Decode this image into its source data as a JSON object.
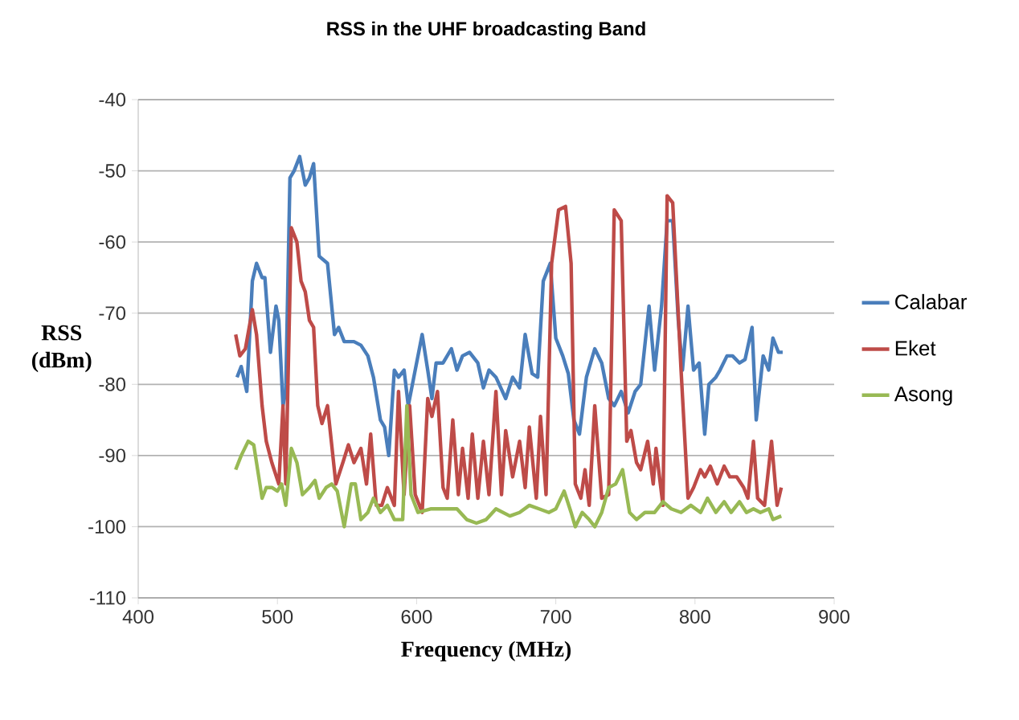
{
  "chart_data": {
    "type": "line",
    "title": "RSS in the UHF broadcasting Band",
    "xlabel": "Frequency (MHz)",
    "ylabel": "RSS (dBm)",
    "xlim": [
      400,
      900
    ],
    "xticks": [
      400,
      500,
      600,
      700,
      800,
      900
    ],
    "ylim": [
      -110,
      -40
    ],
    "yticks": [
      -110,
      -100,
      -90,
      -80,
      -70,
      -60,
      -50,
      -40
    ],
    "grid": "y",
    "legend": "right",
    "marker": "none",
    "line_style": "solid",
    "series": [
      {
        "name": "Calabar",
        "color": "#4a7ebb",
        "x": [
          471,
          474,
          478,
          482,
          485,
          489,
          491,
          495,
          499,
          501,
          504,
          506,
          509,
          512,
          516,
          520,
          523,
          526,
          530,
          536,
          541,
          544,
          548,
          555,
          560,
          565,
          569,
          574,
          577,
          580,
          584,
          587,
          591,
          594,
          598,
          604,
          608,
          611,
          614,
          619,
          625,
          629,
          633,
          638,
          644,
          648,
          652,
          657,
          664,
          669,
          674,
          678,
          683,
          687,
          691,
          696,
          700,
          705,
          709,
          713,
          717,
          722,
          728,
          733,
          738,
          742,
          747,
          752,
          757,
          761,
          767,
          771,
          776,
          780,
          784,
          788,
          791,
          795,
          799,
          803,
          807,
          810,
          815,
          818,
          823,
          827,
          832,
          836,
          841,
          844,
          849,
          853,
          856,
          860,
          863
        ],
        "values": [
          -79,
          -77.5,
          -81,
          -65.5,
          -63,
          -65,
          -65,
          -75.5,
          -69,
          -71,
          -83,
          -81,
          -51,
          -50,
          -48,
          -52,
          -51,
          -49,
          -62,
          -63,
          -73,
          -72,
          -74,
          -74,
          -74.5,
          -76,
          -79,
          -85,
          -86,
          -90,
          -78,
          -79,
          -78,
          -83,
          -79,
          -73,
          -78,
          -82,
          -77,
          -77,
          -75,
          -78,
          -76,
          -75.5,
          -77,
          -80.5,
          -78,
          -79,
          -82,
          -79,
          -80.5,
          -73,
          -78.5,
          -79,
          -65.5,
          -63,
          -73.5,
          -76,
          -78.5,
          -85,
          -87,
          -79,
          -75,
          -77,
          -82,
          -83,
          -81,
          -84,
          -81,
          -80,
          -69,
          -78,
          -69,
          -57,
          -57,
          -71,
          -78,
          -69,
          -78,
          -77,
          -87,
          -80,
          -79,
          -78,
          -76,
          -76,
          -77,
          -76.5,
          -72,
          -85,
          -76,
          -78,
          -73.5,
          -75.5,
          -75.5
        ]
      },
      {
        "name": "Eket",
        "color": "#be4b48",
        "x": [
          470,
          473,
          477,
          482,
          485,
          489,
          492,
          496,
          501,
          504,
          506,
          510,
          514,
          517,
          520,
          523,
          526,
          529,
          532,
          536,
          542,
          547,
          551,
          555,
          560,
          564,
          567,
          571,
          575,
          579,
          584,
          587,
          591,
          595,
          599,
          604,
          608,
          611,
          615,
          619,
          622,
          626,
          630,
          633,
          637,
          640,
          644,
          648,
          652,
          657,
          661,
          664,
          669,
          674,
          678,
          681,
          686,
          689,
          693,
          697,
          702,
          707,
          711,
          714,
          718,
          721,
          724,
          728,
          733,
          738,
          742,
          747,
          751,
          754,
          758,
          761,
          766,
          770,
          772,
          777,
          780,
          784,
          790,
          795,
          799,
          804,
          807,
          811,
          816,
          821,
          825,
          830,
          835,
          838,
          842,
          845,
          850,
          855,
          859,
          862
        ],
        "values": [
          -73,
          -76,
          -75,
          -69.5,
          -73,
          -83,
          -88,
          -91,
          -94,
          -83,
          -94,
          -58,
          -60,
          -65.5,
          -67,
          -71,
          -72,
          -83,
          -85.5,
          -83,
          -94,
          -91,
          -88.5,
          -91,
          -89,
          -94,
          -87,
          -97,
          -97,
          -94.5,
          -97,
          -81,
          -95.5,
          -83,
          -95.5,
          -98,
          -82,
          -84.5,
          -81,
          -94.5,
          -96,
          -85,
          -95.5,
          -89,
          -96,
          -87,
          -96,
          -88,
          -95.5,
          -81,
          -95.5,
          -86.5,
          -93,
          -88,
          -94.5,
          -86,
          -96,
          -84.5,
          -95.5,
          -63,
          -55.5,
          -55,
          -63,
          -94,
          -96,
          -92,
          -97,
          -83,
          -96,
          -95.5,
          -55.5,
          -57,
          -88,
          -86.5,
          -91,
          -92,
          -88,
          -94,
          -89,
          -97,
          -53.5,
          -54.5,
          -78,
          -96,
          -94.5,
          -92,
          -93,
          -91.5,
          -94,
          -91.5,
          -93,
          -93,
          -94.5,
          -96,
          -88,
          -96,
          -97,
          -88,
          -97,
          -94.5
        ]
      },
      {
        "name": "Asong",
        "color": "#98b954",
        "x": [
          470,
          474,
          479,
          483,
          485,
          489,
          492,
          496,
          500,
          503,
          506,
          510,
          514,
          518,
          523,
          527,
          530,
          535,
          539,
          543,
          548,
          553,
          556,
          560,
          565,
          569,
          574,
          579,
          584,
          590,
          593,
          596,
          601,
          610,
          619,
          629,
          636,
          643,
          650,
          657,
          667,
          674,
          681,
          688,
          695,
          700,
          706,
          711,
          714,
          719,
          724,
          728,
          733,
          738,
          743,
          748,
          753,
          758,
          764,
          771,
          777,
          783,
          790,
          797,
          804,
          809,
          815,
          821,
          826,
          832,
          837,
          842,
          847,
          853,
          856,
          862
        ],
        "values": [
          -92,
          -90,
          -88,
          -88.5,
          -91,
          -96,
          -94.5,
          -94.5,
          -95,
          -94,
          -97,
          -89,
          -91,
          -95.5,
          -94.5,
          -93.5,
          -96,
          -94.5,
          -94,
          -95,
          -100,
          -94,
          -94,
          -99,
          -98,
          -96,
          -98,
          -97,
          -99,
          -99,
          -83,
          -95.5,
          -98,
          -97.5,
          -97.5,
          -97.5,
          -99,
          -99.5,
          -99,
          -97.5,
          -98.5,
          -98,
          -97,
          -97.5,
          -98,
          -97.5,
          -95,
          -98,
          -100,
          -98,
          -99,
          -100,
          -98,
          -94.5,
          -94,
          -92,
          -98,
          -99,
          -98,
          -98,
          -96.5,
          -97.5,
          -98,
          -97,
          -98,
          -96,
          -98,
          -96.5,
          -98,
          -96.5,
          -98,
          -97.5,
          -98,
          -97.5,
          -99,
          -98.5
        ]
      }
    ]
  }
}
